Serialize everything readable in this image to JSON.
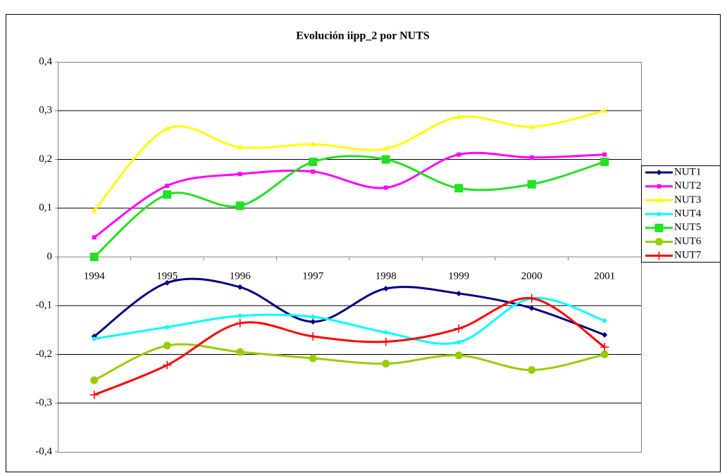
{
  "chart_data": {
    "type": "line",
    "title": "Evolución iipp_2 por NUTS",
    "categories": [
      "1994",
      "1995",
      "1996",
      "1997",
      "1998",
      "1999",
      "2000",
      "2001"
    ],
    "ylim": [
      -0.4,
      0.4
    ],
    "yticks": [
      {
        "value": -0.4,
        "label": "-0,4"
      },
      {
        "value": -0.3,
        "label": "-0,3"
      },
      {
        "value": -0.2,
        "label": "-0,2"
      },
      {
        "value": -0.1,
        "label": "-0,1"
      },
      0,
      {
        "value": 0.1,
        "label": "0,1"
      },
      {
        "value": 0.2,
        "label": "0,2"
      },
      {
        "value": 0.3,
        "label": "0,3"
      },
      {
        "value": 0.4,
        "label": "0,4"
      }
    ],
    "grid": true,
    "smooth": true,
    "legend": "right",
    "series": [
      {
        "name": "NUT1",
        "color": "#000080",
        "marker": "diamond",
        "values": [
          -0.163,
          -0.053,
          -0.062,
          -0.133,
          -0.065,
          -0.075,
          -0.105,
          -0.16
        ]
      },
      {
        "name": "NUT2",
        "color": "#ff00ff",
        "marker": "square",
        "values": [
          0.04,
          0.146,
          0.17,
          0.175,
          0.142,
          0.21,
          0.204,
          0.21
        ]
      },
      {
        "name": "NUT3",
        "color": "#ffff00",
        "marker": "triangle",
        "values": [
          0.095,
          0.263,
          0.225,
          0.231,
          0.222,
          0.287,
          0.267,
          0.3
        ]
      },
      {
        "name": "NUT4",
        "color": "#00ffff",
        "marker": "dot",
        "values": [
          -0.168,
          -0.144,
          -0.121,
          -0.123,
          -0.155,
          -0.175,
          -0.085,
          -0.131
        ]
      },
      {
        "name": "NUT5",
        "color": "#22e022",
        "marker": "bigsquare",
        "values": [
          0,
          0.128,
          0.105,
          0.195,
          0.2,
          0.141,
          0.149,
          0.195
        ]
      },
      {
        "name": "NUT6",
        "color": "#99cc00",
        "marker": "circle",
        "values": [
          -0.253,
          -0.182,
          -0.195,
          -0.208,
          -0.219,
          -0.202,
          -0.232,
          -0.2
        ]
      },
      {
        "name": "NUT7",
        "color": "#ff0000",
        "marker": "plus",
        "values": [
          -0.283,
          -0.222,
          -0.136,
          -0.163,
          -0.174,
          -0.147,
          -0.085,
          -0.185
        ]
      }
    ]
  }
}
